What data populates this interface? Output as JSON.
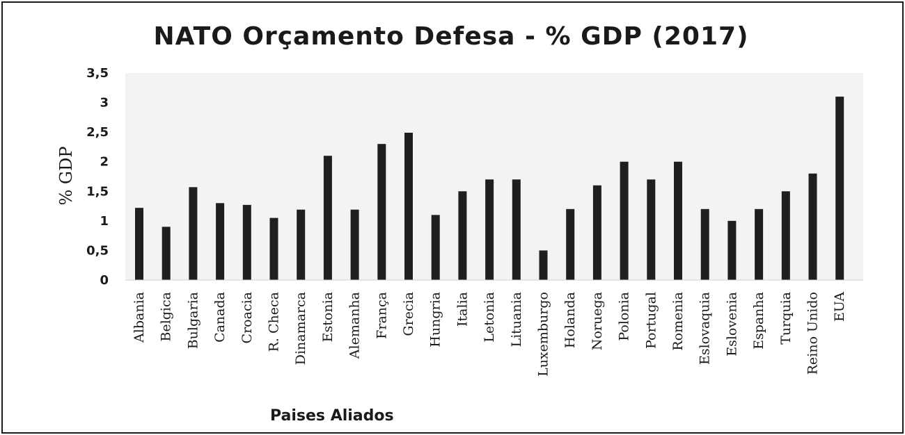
{
  "chart_data": {
    "type": "bar",
    "title": "NATO Orçamento Defesa - % GDP (2017)",
    "xlabel": "Paises Aliados",
    "ylabel": "% GDP",
    "ylim": [
      0,
      3.5
    ],
    "yticks": [
      "0",
      "0,5",
      "1",
      "1,5",
      "2",
      "2,5",
      "3",
      "3,5"
    ],
    "grid": false,
    "bar_color": "#1f1f1f",
    "categories": [
      "Albania",
      "Belgica",
      "Bulgaria",
      "Canada",
      "Croacia",
      "R. Checa",
      "Dinamarca",
      "Estonia",
      "Alemanha",
      "França",
      "Grecia",
      "Hungria",
      "Italia",
      "Letonia",
      "Lituania",
      "Luxemburgo",
      "Holanda",
      "Noruega",
      "Polonia",
      "Portugal",
      "Romenia",
      "Eslovaquia",
      "Eslovenia",
      "Espanha",
      "Turquia",
      "Reino Unido",
      "EUA"
    ],
    "values": [
      1.22,
      0.9,
      1.57,
      1.3,
      1.27,
      1.05,
      1.19,
      2.1,
      1.19,
      2.3,
      2.49,
      1.1,
      1.5,
      1.7,
      1.7,
      0.5,
      1.2,
      1.6,
      2.0,
      1.7,
      2.0,
      1.2,
      1.0,
      1.2,
      1.5,
      1.8,
      3.1
    ]
  }
}
